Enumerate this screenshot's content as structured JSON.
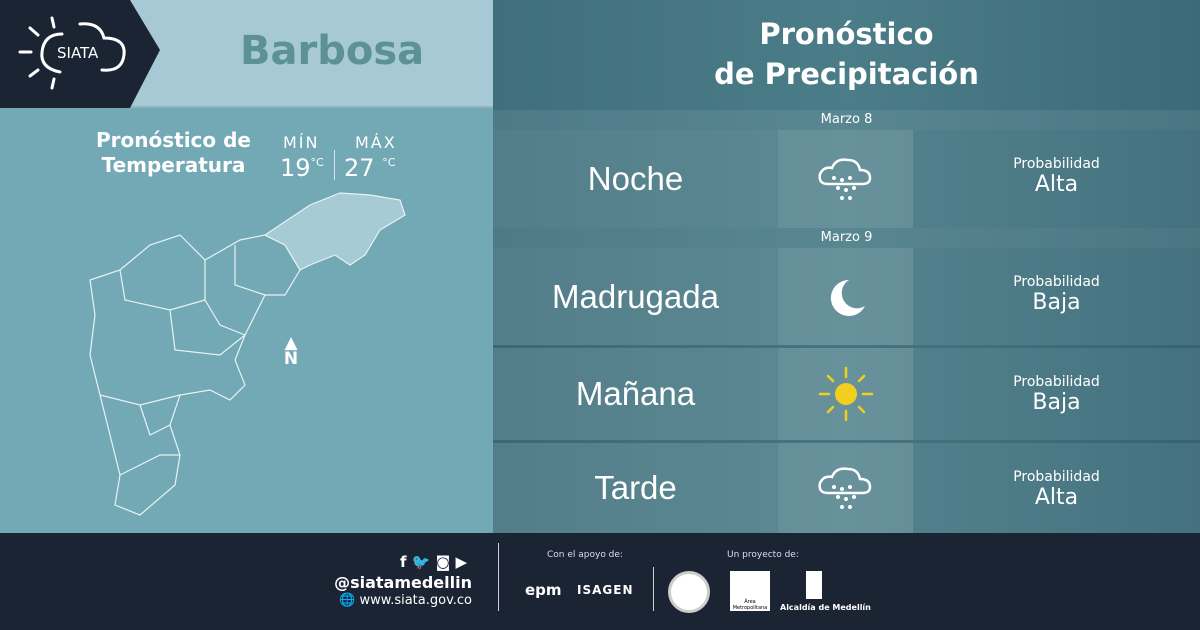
{
  "logo": {
    "text": "SIATA"
  },
  "header": {
    "city": "Barbosa"
  },
  "temperature": {
    "title_line1": "Pronóstico de",
    "title_line2": "Temperatura",
    "min_label": "MÍN",
    "max_label": "MÁX",
    "min": "19",
    "max": "27",
    "unit": "°C"
  },
  "map": {
    "north": "N"
  },
  "precip": {
    "title_line1": "Pronóstico",
    "title_line2": "de Precipitación",
    "dates": [
      "Marzo 8",
      "Marzo 9"
    ],
    "rows": [
      {
        "period": "Noche",
        "icon": "rain-cloud-icon",
        "prob_label": "Probabilidad",
        "prob": "Alta"
      },
      {
        "period": "Madrugada",
        "icon": "moon-icon",
        "prob_label": "Probabilidad",
        "prob": "Baja"
      },
      {
        "period": "Mañana",
        "icon": "sun-icon",
        "prob_label": "Probabilidad",
        "prob": "Baja"
      },
      {
        "period": "Tarde",
        "icon": "rain-cloud-icon",
        "prob_label": "Probabilidad",
        "prob": "Alta"
      }
    ]
  },
  "footer": {
    "handle": "@siatamedellin",
    "website": "www.siata.gov.co",
    "support_label": "Con el apoyo de:",
    "project_label": "Un proyecto de:",
    "sponsors": [
      "epm",
      "ISAGEN"
    ],
    "partners": [
      "Área Metropolitana",
      "Alcaldía de Medellín"
    ]
  }
}
